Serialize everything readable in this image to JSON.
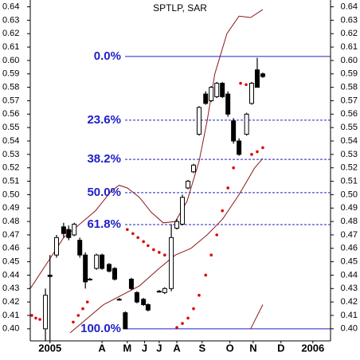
{
  "chart_data": {
    "type": "candlestick",
    "title": "SPTLP, SAR",
    "xlim": [
      -1.9,
      57.5
    ],
    "xticks": [
      {
        "value": 2,
        "label": "2005"
      },
      {
        "value": 12.3,
        "label": "A"
      },
      {
        "value": 17.3,
        "label": "M"
      },
      {
        "value": 20.7,
        "label": "J"
      },
      {
        "value": 23.6,
        "label": "J"
      },
      {
        "value": 27.1,
        "label": "A"
      },
      {
        "value": 32.1,
        "label": "S"
      },
      {
        "value": 37.6,
        "label": "O"
      },
      {
        "value": 42.2,
        "label": "N"
      },
      {
        "value": 47.7,
        "label": "D"
      },
      {
        "value": 54,
        "label": "2006"
      }
    ],
    "ylim": [
      0.391,
      0.643
    ],
    "yticks": [
      {
        "value": 0.4,
        "label": "0.40"
      },
      {
        "value": 0.41,
        "label": "0.41"
      },
      {
        "value": 0.42,
        "label": "0.42"
      },
      {
        "value": 0.43,
        "label": "0.43"
      },
      {
        "value": 0.44,
        "label": "0.44"
      },
      {
        "value": 0.45,
        "label": "0.45"
      },
      {
        "value": 0.46,
        "label": "0.46"
      },
      {
        "value": 0.47,
        "label": "0.47"
      },
      {
        "value": 0.48,
        "label": "0.48"
      },
      {
        "value": 0.49,
        "label": "0.49"
      },
      {
        "value": 0.5,
        "label": "0.50"
      },
      {
        "value": 0.51,
        "label": "0.51"
      },
      {
        "value": 0.52,
        "label": "0.52"
      },
      {
        "value": 0.53,
        "label": "0.53"
      },
      {
        "value": 0.54,
        "label": "0.54"
      },
      {
        "value": 0.55,
        "label": "0.55"
      },
      {
        "value": 0.56,
        "label": "0.56"
      },
      {
        "value": 0.57,
        "label": "0.57"
      },
      {
        "value": 0.58,
        "label": "0.58"
      },
      {
        "value": 0.59,
        "label": "0.59"
      },
      {
        "value": 0.6,
        "label": "0.60"
      },
      {
        "value": 0.61,
        "label": "0.61"
      },
      {
        "value": 0.62,
        "label": "0.62"
      },
      {
        "value": 0.63,
        "label": "0.63"
      },
      {
        "value": 0.64,
        "label": "0.64"
      }
    ],
    "candle_color": "#000000",
    "candles": [
      {
        "x": 1.1,
        "open": 0.4,
        "high": 0.43,
        "low": 0.39,
        "close": 0.425
      },
      {
        "x": 2.0,
        "open": 0.44,
        "high": 0.455,
        "low": 0.39,
        "close": 0.439
      },
      {
        "x": 3.3,
        "open": 0.455,
        "high": 0.47,
        "low": 0.453,
        "close": 0.468
      },
      {
        "x": 4.7,
        "open": 0.476,
        "high": 0.479,
        "low": 0.468,
        "close": 0.471
      },
      {
        "x": 5.7,
        "open": 0.474,
        "high": 0.477,
        "low": 0.466,
        "close": 0.468
      },
      {
        "x": 6.8,
        "open": 0.47,
        "high": 0.479,
        "low": 0.469,
        "close": 0.478
      },
      {
        "x": 7.9,
        "open": 0.466,
        "high": 0.468,
        "low": 0.453,
        "close": 0.455
      },
      {
        "x": 9.0,
        "open": 0.455,
        "high": 0.457,
        "low": 0.43,
        "close": 0.435
      },
      {
        "x": 9.9,
        "open": 0.437,
        "high": 0.438,
        "low": 0.436,
        "close": 0.437
      },
      {
        "x": 11.2,
        "open": 0.445,
        "high": 0.456,
        "low": 0.444,
        "close": 0.455
      },
      {
        "x": 12.3,
        "open": 0.455,
        "high": 0.456,
        "low": 0.444,
        "close": 0.445
      },
      {
        "x": 13.7,
        "open": 0.448,
        "high": 0.449,
        "low": 0.442,
        "close": 0.443
      },
      {
        "x": 14.8,
        "open": 0.445,
        "high": 0.446,
        "low": 0.436,
        "close": 0.437
      },
      {
        "x": 15.7,
        "open": 0.422,
        "high": 0.423,
        "low": 0.421,
        "close": 0.422
      },
      {
        "x": 16.9,
        "open": 0.412,
        "high": 0.413,
        "low": 0.4,
        "close": 0.4
      },
      {
        "x": 18.1,
        "open": 0.437,
        "high": 0.438,
        "low": 0.429,
        "close": 0.43
      },
      {
        "x": 19.2,
        "open": 0.427,
        "high": 0.428,
        "low": 0.419,
        "close": 0.42
      },
      {
        "x": 20.5,
        "open": 0.422,
        "high": 0.423,
        "low": 0.417,
        "close": 0.418
      },
      {
        "x": 21.4,
        "open": 0.418,
        "high": 0.419,
        "low": 0.413,
        "close": 0.414
      },
      {
        "x": 23.6,
        "open": 0.428,
        "high": 0.429,
        "low": 0.427,
        "close": 0.428
      },
      {
        "x": 24.7,
        "open": 0.427,
        "high": 0.431,
        "low": 0.426,
        "close": 0.43
      },
      {
        "x": 26.0,
        "open": 0.43,
        "high": 0.478,
        "low": 0.428,
        "close": 0.468
      },
      {
        "x": 27.1,
        "open": 0.475,
        "high": 0.482,
        "low": 0.474,
        "close": 0.48
      },
      {
        "x": 28.2,
        "open": 0.478,
        "high": 0.5,
        "low": 0.477,
        "close": 0.498
      },
      {
        "x": 29.3,
        "open": 0.505,
        "high": 0.511,
        "low": 0.504,
        "close": 0.51
      },
      {
        "x": 30.4,
        "open": 0.517,
        "high": 0.523,
        "low": 0.516,
        "close": 0.522
      },
      {
        "x": 31.5,
        "open": 0.545,
        "high": 0.566,
        "low": 0.544,
        "close": 0.565
      },
      {
        "x": 32.8,
        "open": 0.575,
        "high": 0.577,
        "low": 0.567,
        "close": 0.568
      },
      {
        "x": 33.9,
        "open": 0.57,
        "high": 0.581,
        "low": 0.569,
        "close": 0.58
      },
      {
        "x": 35.0,
        "open": 0.573,
        "high": 0.584,
        "low": 0.572,
        "close": 0.583
      },
      {
        "x": 36.1,
        "open": 0.583,
        "high": 0.584,
        "low": 0.572,
        "close": 0.573
      },
      {
        "x": 37.2,
        "open": 0.575,
        "high": 0.577,
        "low": 0.558,
        "close": 0.56
      },
      {
        "x": 38.3,
        "open": 0.555,
        "high": 0.557,
        "low": 0.538,
        "close": 0.54
      },
      {
        "x": 39.4,
        "open": 0.54,
        "high": 0.542,
        "low": 0.529,
        "close": 0.53
      },
      {
        "x": 40.9,
        "open": 0.545,
        "high": 0.561,
        "low": 0.544,
        "close": 0.56
      },
      {
        "x": 41.9,
        "open": 0.568,
        "high": 0.584,
        "low": 0.567,
        "close": 0.583
      },
      {
        "x": 43.0,
        "open": 0.593,
        "high": 0.602,
        "low": 0.58,
        "close": 0.58
      },
      {
        "x": 44.1,
        "open": 0.59,
        "high": 0.591,
        "low": 0.587,
        "close": 0.588
      }
    ],
    "sar": {
      "color": "#e00000",
      "x": [
        -1.6,
        -0.8,
        0,
        6.6,
        7.6,
        8.5,
        9.4,
        17.3,
        18.4,
        19.4,
        20.5,
        21.4,
        22.5,
        23.6,
        24.7,
        27.1,
        28.2,
        29.3,
        30.4,
        31.5,
        32.8,
        33.9,
        35.0,
        36.1,
        37.2,
        38.3,
        39.7,
        40.8,
        41.9,
        43.0,
        44.1
      ],
      "values": [
        0.41,
        0.408,
        0.407,
        0.405,
        0.41,
        0.415,
        0.42,
        0.474,
        0.471,
        0.468,
        0.465,
        0.462,
        0.459,
        0.457,
        0.455,
        0.401,
        0.404,
        0.408,
        0.415,
        0.425,
        0.44,
        0.455,
        0.47,
        0.488,
        0.505,
        0.52,
        0.583,
        0.582,
        0.53,
        0.532,
        0.535
      ]
    },
    "bands": [
      {
        "color": "#8b1a1a",
        "x": [
          -1.9,
          1.6,
          4.7,
          7.9,
          11.0,
          14.2,
          15.7,
          17.3,
          19.7,
          22.0,
          24.4,
          26.8,
          29.1,
          31.5,
          33.1,
          34.6,
          37.0,
          39.4,
          41.7,
          44.1
        ],
        "values": [
          0.43,
          0.45,
          0.468,
          0.478,
          0.488,
          0.503,
          0.507,
          0.505,
          0.498,
          0.487,
          0.479,
          0.48,
          0.495,
          0.525,
          0.555,
          0.59,
          0.62,
          0.633,
          0.632,
          0.638
        ]
      },
      {
        "color": "#8b1a1a",
        "x": [
          6.0,
          12.6,
          19.7,
          23.6,
          26.8,
          29.9,
          33.1,
          36.2,
          39.4,
          42.5,
          44.1
        ],
        "values": [
          0.397,
          0.418,
          0.432,
          0.445,
          0.455,
          0.46,
          0.47,
          0.482,
          0.5,
          0.52,
          0.527
        ]
      },
      {
        "color": "#8b1a1a",
        "x": [
          41.7,
          44.1
        ],
        "values": [
          0.4,
          0.418
        ]
      }
    ],
    "fib_color": "#2020c8",
    "fib_levels": [
      {
        "label": "0.0%",
        "value": 0.603,
        "style": "solid"
      },
      {
        "label": "23.6%",
        "value": 0.5555,
        "style": "dashed"
      },
      {
        "label": "38.2%",
        "value": 0.5263,
        "style": "dashed"
      },
      {
        "label": "50.0%",
        "value": 0.5015,
        "style": "dashed"
      },
      {
        "label": "61.8%",
        "value": 0.4777,
        "style": "dashed"
      },
      {
        "label": "100.0%",
        "value": 0.4,
        "style": "solid"
      }
    ]
  }
}
